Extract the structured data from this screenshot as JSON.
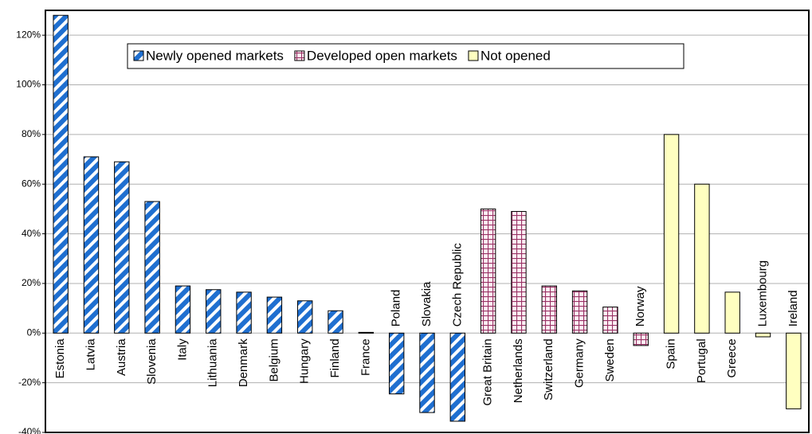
{
  "chart_data": {
    "type": "bar",
    "categories": [
      "Estonia",
      "Latvia",
      "Austria",
      "Slovenia",
      "Italy",
      "Lithuania",
      "Denmark",
      "Belgium",
      "Hungary",
      "Finland",
      "France",
      "Poland",
      "Slovakia",
      "Czech Republic",
      "Great Britain",
      "Netherlands",
      "Switzerland",
      "Germany",
      "Sweden",
      "Norway",
      "Spain",
      "Portugal",
      "Greece",
      "Luxembourg",
      "Ireland"
    ],
    "series": [
      {
        "name": "Newly opened markets",
        "color": "#1f6fd0",
        "values": [
          128,
          71,
          69,
          53,
          19,
          17.5,
          16.5,
          14.5,
          13,
          9,
          0.3,
          -24.5,
          -32,
          -35.5,
          null,
          null,
          null,
          null,
          null,
          null,
          null,
          null,
          null,
          null,
          null
        ]
      },
      {
        "name": "Developed open markets",
        "color": "#993366",
        "values": [
          null,
          null,
          null,
          null,
          null,
          null,
          null,
          null,
          null,
          null,
          null,
          null,
          null,
          null,
          50,
          49,
          19,
          17,
          10.5,
          -5,
          null,
          null,
          null,
          null,
          null
        ]
      },
      {
        "name": "Not opened",
        "color": "#ffffc0",
        "values": [
          null,
          null,
          null,
          null,
          null,
          null,
          null,
          null,
          null,
          null,
          null,
          null,
          null,
          null,
          null,
          null,
          null,
          null,
          null,
          null,
          80,
          60,
          16.5,
          -1.5,
          -30.5
        ]
      }
    ],
    "ylim": [
      -40,
      130
    ],
    "yticks": [
      {
        "value": -40,
        "label": "-40%"
      },
      {
        "value": -20,
        "label": "-20%"
      },
      {
        "value": 0,
        "label": "0%"
      },
      {
        "value": 20,
        "label": "20%"
      },
      {
        "value": 40,
        "label": "40%"
      },
      {
        "value": 60,
        "label": "60%"
      },
      {
        "value": 80,
        "label": "80%"
      },
      {
        "value": 100,
        "label": "100%"
      },
      {
        "value": 120,
        "label": "120%"
      }
    ],
    "grid": true,
    "legend": "top"
  }
}
